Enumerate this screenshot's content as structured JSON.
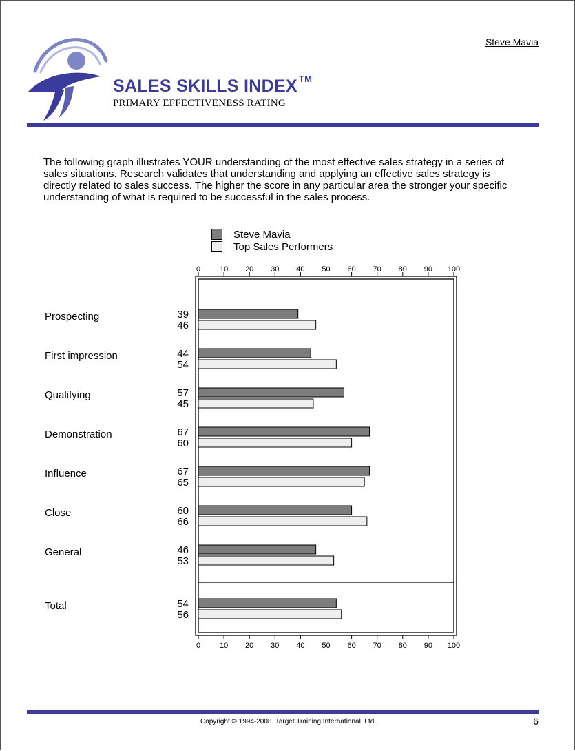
{
  "header": {
    "person_name": "Steve Mavia",
    "title": "SALES SKILLS INDEX",
    "trademark": "TM",
    "subtitle": "PRIMARY EFFECTIVENESS RATING"
  },
  "intro_text": "The following graph illustrates YOUR understanding of the most effective sales strategy in a series of sales situations.  Research validates that understanding and applying an effective sales strategy is directly related to sales success.  The higher the score in any particular area the stronger your specific understanding of what is required to be successful in the sales process.",
  "footer": {
    "copyright": "Copyright © 1994-2008. Target Training International, Ltd.",
    "page_number": "6"
  },
  "colors": {
    "brand_blue": "#3b3b9c",
    "series_dark": "#7d7d7d",
    "series_light": "#eeeeee"
  },
  "chart_data": {
    "type": "bar",
    "orientation": "horizontal",
    "categories": [
      "Prospecting",
      "First impression",
      "Qualifying",
      "Demonstration",
      "Influence",
      "Close",
      "General",
      "Total"
    ],
    "series": [
      {
        "name": "Steve Mavia",
        "values": [
          39,
          44,
          57,
          67,
          67,
          60,
          46,
          54
        ]
      },
      {
        "name": "Top Sales Performers",
        "values": [
          46,
          54,
          45,
          60,
          65,
          66,
          53,
          56
        ]
      }
    ],
    "xlim": [
      0,
      100
    ],
    "ticks": [
      "0",
      "10",
      "20",
      "30",
      "40",
      "50",
      "60",
      "70",
      "80",
      "90",
      "100"
    ],
    "legend_position": "top",
    "grid": false
  }
}
